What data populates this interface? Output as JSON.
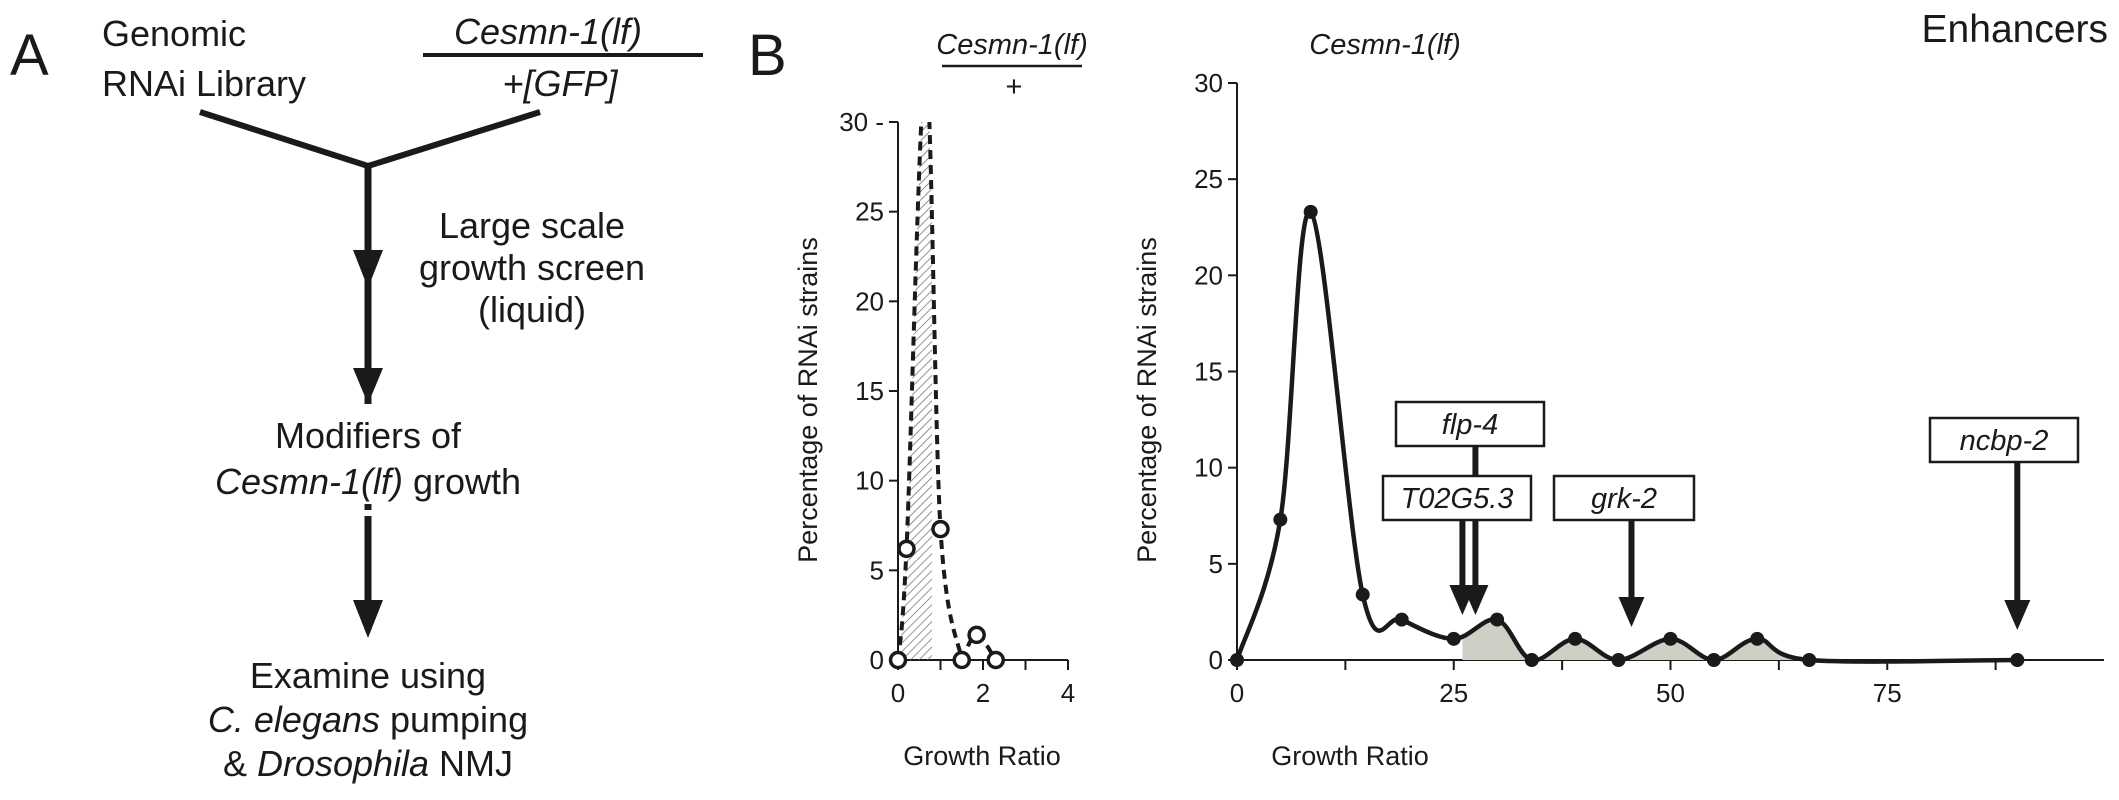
{
  "panel_a": {
    "letter": "A",
    "library_line1": "Genomic",
    "library_line2": "RNAi Library",
    "strain_numerator": "Cesmn-1(lf)",
    "strain_denominator": "+[GFP]",
    "screen_line1": "Large scale",
    "screen_line2": "growth screen",
    "screen_line3": "(liquid)",
    "modifiers_line1": "Modifiers of",
    "modifiers_italic": "Cesmn-1(lf)",
    "modifiers_rest": " growth",
    "examine_line1": "Examine using",
    "examine_italic1": "C. elegans",
    "examine_rest1": " pumping",
    "examine_amp": "& ",
    "examine_italic2": "Drosophila",
    "examine_rest2": " NMJ"
  },
  "panel_b": {
    "letter": "B",
    "corner_label": "Enhancers"
  },
  "chart_data": [
    {
      "type": "line",
      "header_numerator": "Cesmn-1(lf)",
      "header_denominator": "+",
      "ylabel": "Percentage of RNAi strains",
      "xlabel": "Growth Ratio",
      "xlim": [
        0,
        4
      ],
      "ylim": [
        0,
        30
      ],
      "xticks": [
        0,
        2,
        4
      ],
      "yticks": [
        0,
        5,
        10,
        15,
        20,
        25,
        30
      ],
      "ytick_labels": [
        "0",
        "5",
        "10",
        "15",
        "20",
        "25",
        "30 -"
      ],
      "line_style": "dashed",
      "marker": "open-circle",
      "shaded_region": "hatched, x 0 to 0.8",
      "series": [
        {
          "x": [
            0,
            0.2,
            1.0,
            1.5,
            1.85,
            2.3
          ],
          "y": [
            0,
            6.2,
            7.3,
            0,
            1.4,
            0
          ]
        }
      ]
    },
    {
      "type": "line",
      "header": "Cesmn-1(lf)",
      "ylabel": "Percentage of RNAi strains",
      "xlabel": "Growth Ratio",
      "xlim": [
        0,
        100
      ],
      "ylim": [
        0,
        30
      ],
      "xticks": [
        0,
        25,
        50,
        75
      ],
      "yticks": [
        0,
        5,
        10,
        15,
        20,
        25,
        30
      ],
      "line_style": "solid",
      "marker": "filled-circle",
      "shaded_region": "gray fill, x 26 to 66",
      "series": [
        {
          "x": [
            0,
            5,
            8.5,
            14.5,
            19,
            25,
            30,
            34,
            39,
            44,
            50,
            55,
            60,
            66,
            90
          ],
          "y": [
            0,
            7.3,
            23.3,
            3.4,
            2.1,
            1.1,
            2.1,
            0,
            1.1,
            0,
            1.1,
            0,
            1.1,
            0,
            0
          ]
        }
      ],
      "annotations": [
        {
          "label": "flp-4",
          "x": 27.5
        },
        {
          "label": "T02G5.3",
          "x": 26
        },
        {
          "label": "grk-2",
          "x": 45.5
        },
        {
          "label": "ncbp-2",
          "x": 90
        }
      ]
    }
  ]
}
